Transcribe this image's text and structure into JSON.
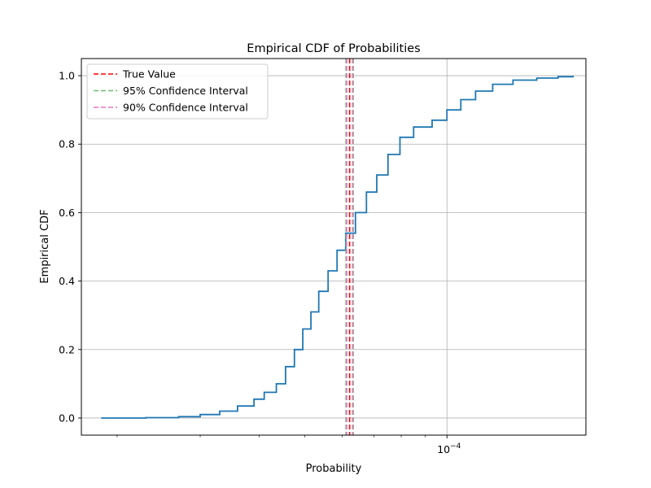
{
  "chart_data": {
    "type": "line",
    "title": "Empirical CDF of Probabilities",
    "xlabel": "Probability",
    "ylabel": "Empirical CDF",
    "x_scale": "log",
    "xlim": [
      1.68e-05,
      0.000197
    ],
    "ylim": [
      -0.05,
      1.05
    ],
    "grid": true,
    "legend_placement": "top-left",
    "x_major_tick": {
      "value": 0.0001,
      "label_base": "10",
      "label_exp": "−4"
    },
    "x_minor_ticks": [
      2e-05,
      3e-05,
      4e-05,
      5e-05,
      6e-05,
      7e-05,
      8e-05,
      9e-05,
      0.0002
    ],
    "y_ticks": [
      {
        "value": 0.0,
        "label": "0.0"
      },
      {
        "value": 0.2,
        "label": "0.2"
      },
      {
        "value": 0.4,
        "label": "0.4"
      },
      {
        "value": 0.6,
        "label": "0.6"
      },
      {
        "value": 0.8,
        "label": "0.8"
      },
      {
        "value": 1.0,
        "label": "1.0"
      }
    ],
    "series": [
      {
        "color": "#1f77b4",
        "points": [
          [
            1.85e-05,
            0.0
          ],
          [
            2.3e-05,
            0.001
          ],
          [
            2.7e-05,
            0.004
          ],
          [
            3e-05,
            0.01
          ],
          [
            3.3e-05,
            0.02
          ],
          [
            3.6e-05,
            0.035
          ],
          [
            3.9e-05,
            0.055
          ],
          [
            4.1e-05,
            0.075
          ],
          [
            4.35e-05,
            0.1
          ],
          [
            4.55e-05,
            0.15
          ],
          [
            4.75e-05,
            0.2
          ],
          [
            4.95e-05,
            0.26
          ],
          [
            5.15e-05,
            0.31
          ],
          [
            5.35e-05,
            0.37
          ],
          [
            5.6e-05,
            0.43
          ],
          [
            5.85e-05,
            0.49
          ],
          [
            6.1e-05,
            0.54
          ],
          [
            6.4e-05,
            0.6
          ],
          [
            6.75e-05,
            0.66
          ],
          [
            7.1e-05,
            0.71
          ],
          [
            7.5e-05,
            0.77
          ],
          [
            7.95e-05,
            0.82
          ],
          [
            8.5e-05,
            0.85
          ],
          [
            9.3e-05,
            0.87
          ],
          [
            0.0001,
            0.9
          ],
          [
            0.000107,
            0.93
          ],
          [
            0.000115,
            0.955
          ],
          [
            0.000125,
            0.975
          ],
          [
            0.000138,
            0.987
          ],
          [
            0.000155,
            0.993
          ],
          [
            0.000172,
            0.997
          ],
          [
            0.000185,
            1.0
          ]
        ]
      }
    ],
    "vlines": [
      {
        "name": "True Value",
        "x": 6.22e-05,
        "color": "#ff0000",
        "dash": "6,3"
      },
      {
        "name": "95% Confidence Interval",
        "x_low": 6.11e-05,
        "x_high": 6.33e-05,
        "color": "#6ebd6e",
        "dash": "6,3"
      },
      {
        "name": "90% Confidence Interval",
        "x_low": 6.13e-05,
        "x_high": 6.31e-05,
        "color": "#e377c2",
        "dash": "6,3"
      }
    ],
    "legend": [
      {
        "label": "True Value",
        "color": "#ff0000"
      },
      {
        "label": "95% Confidence Interval",
        "color": "#6ebd6e"
      },
      {
        "label": "90% Confidence Interval",
        "color": "#e377c2"
      }
    ]
  }
}
